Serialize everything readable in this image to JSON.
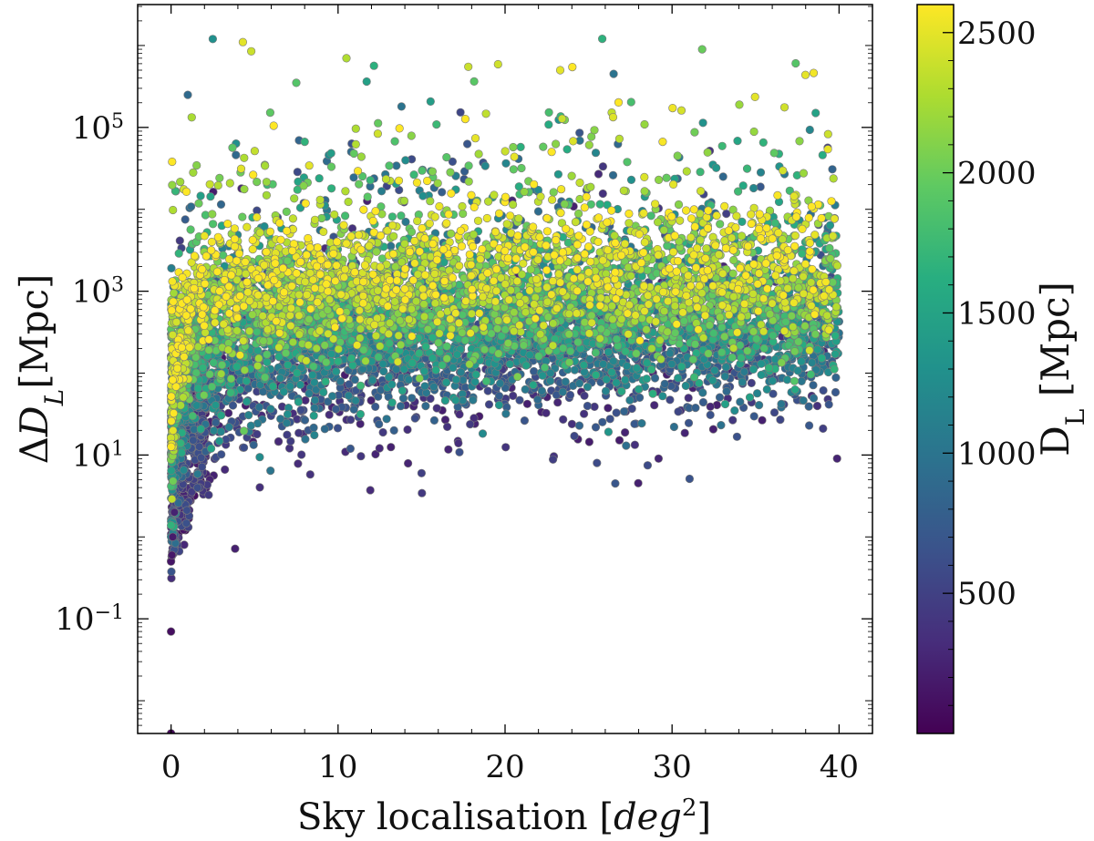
{
  "chart_data": {
    "type": "scatter",
    "xlabel": "Sky localisation [deg²]",
    "ylabel": "ΔD_L[Mpc]",
    "xlim": [
      -2,
      42
    ],
    "ylim_log10": [
      -2.4,
      6.5
    ],
    "yscale": "log",
    "x_ticks": [
      0,
      10,
      20,
      30,
      40
    ],
    "x_tick_labels": [
      "0",
      "10",
      "20",
      "30",
      "40"
    ],
    "y_ticks_log10": [
      -1,
      1,
      3,
      5
    ],
    "y_tick_labels": [
      {
        "base": "10",
        "exp": "−1"
      },
      {
        "base": "10",
        "exp": "1"
      },
      {
        "base": "10",
        "exp": "3"
      },
      {
        "base": "10",
        "exp": "5"
      }
    ],
    "colorbar": {
      "label": "D_L [Mpc]",
      "range": [
        0,
        2600
      ],
      "ticks": [
        500,
        1000,
        1500,
        2000,
        2500
      ],
      "tick_labels": [
        "500",
        "1000",
        "1500",
        "2000",
        "2500"
      ],
      "colormap": "viridis"
    },
    "series_points": [
      {
        "x": 0.0,
        "y": 0.004,
        "c": 50
      },
      {
        "x": 0.0,
        "y": 0.07,
        "c": 100
      },
      {
        "x": 0.0,
        "y": 0.5,
        "c": 150
      },
      {
        "x": 0.05,
        "y": 0.6,
        "c": 180
      },
      {
        "x": 0.1,
        "y": 1.0,
        "c": 200
      },
      {
        "x": 0.2,
        "y": 2.0,
        "c": 250
      },
      {
        "x": 2.5,
        "y": 1200000,
        "c": 1300
      },
      {
        "x": 4.3,
        "y": 1100000,
        "c": 2500
      },
      {
        "x": 4.8,
        "y": 850000,
        "c": 2400
      },
      {
        "x": 1.0,
        "y": 250000,
        "c": 900
      },
      {
        "x": 7.5,
        "y": 350000,
        "c": 1900
      },
      {
        "x": 10.5,
        "y": 700000,
        "c": 2300
      },
      {
        "x": 13.8,
        "y": 180000,
        "c": 1000
      },
      {
        "x": 17.8,
        "y": 550000,
        "c": 2400
      },
      {
        "x": 23.3,
        "y": 500000,
        "c": 2500
      },
      {
        "x": 26.5,
        "y": 450000,
        "c": 1000
      },
      {
        "x": 31.8,
        "y": 900000,
        "c": 2000
      },
      {
        "x": 38.6,
        "y": 150000,
        "c": 1500
      },
      {
        "x": 15.0,
        "y": 6,
        "c": 500
      },
      {
        "x": 25.5,
        "y": 8,
        "c": 600
      },
      {
        "x": 26.6,
        "y": 4.5,
        "c": 700
      },
      {
        "x": 2.4,
        "y": 12,
        "c": 1500
      }
    ],
    "distribution": {
      "x_range": [
        0,
        40
      ],
      "low_dl_band_log10": [
        0.5,
        2.7
      ],
      "high_dl_band_log10": [
        1.9,
        3.7
      ],
      "outlier_upper_log10": [
        3.5,
        5.4
      ],
      "note_visible": false
    }
  }
}
